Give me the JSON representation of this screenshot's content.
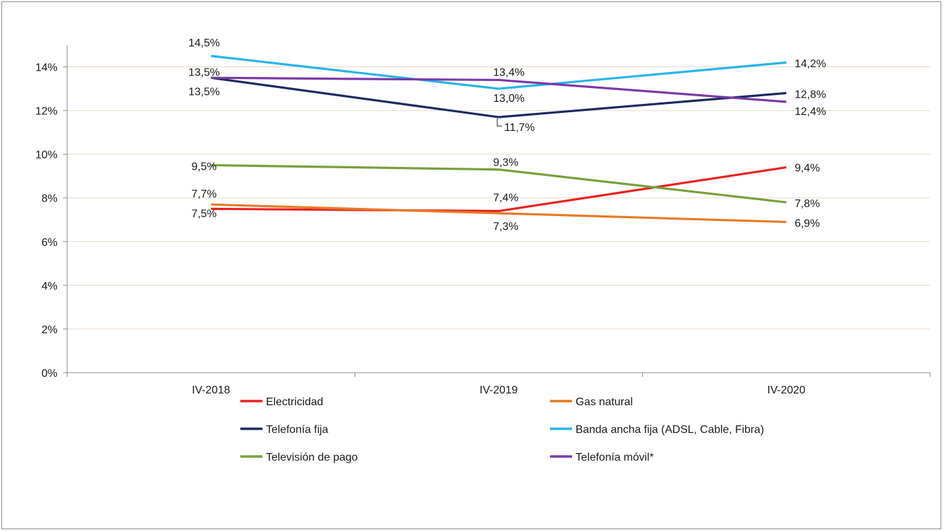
{
  "chart_data": {
    "type": "line",
    "categories": [
      "IV-2018",
      "IV-2019",
      "IV-2020"
    ],
    "ylim": [
      0,
      15
    ],
    "yticks": [
      0,
      2,
      4,
      6,
      8,
      10,
      12,
      14
    ],
    "ytick_labels": [
      "0%",
      "2%",
      "4%",
      "6%",
      "8%",
      "10%",
      "12%",
      "14%"
    ],
    "grid": true,
    "legend_position": "bottom",
    "series": [
      {
        "name": "Electricidad",
        "color": "#e8231f",
        "values": [
          7.5,
          7.4,
          9.4
        ],
        "labels": [
          "7,5%",
          "7,4%",
          "9,4%"
        ]
      },
      {
        "name": "Gas natural",
        "color": "#e87a24",
        "values": [
          7.7,
          7.3,
          6.9
        ],
        "labels": [
          "7,7%",
          "7,3%",
          "6,9%"
        ]
      },
      {
        "name": "Telefonía fija",
        "color": "#1b2a63",
        "values": [
          13.5,
          11.7,
          12.8
        ],
        "labels": [
          "13,5%",
          "11,7%",
          "12,8%"
        ]
      },
      {
        "name": "Banda ancha fija (ADSL, Cable, Fibra)",
        "color": "#27b4ea",
        "values": [
          14.5,
          13.0,
          14.2
        ],
        "labels": [
          "14,5%",
          "13,0%",
          "14,2%"
        ]
      },
      {
        "name": "Televisión de pago",
        "color": "#77a03c",
        "values": [
          9.5,
          9.3,
          7.8
        ],
        "labels": [
          "9,5%",
          "9,3%",
          "7,8%"
        ]
      },
      {
        "name": "Telefonía móvil*",
        "color": "#7b3aa6",
        "values": [
          13.5,
          13.4,
          12.4
        ],
        "labels": [
          "13,5%",
          "13,4%",
          "12,4%"
        ]
      }
    ]
  }
}
